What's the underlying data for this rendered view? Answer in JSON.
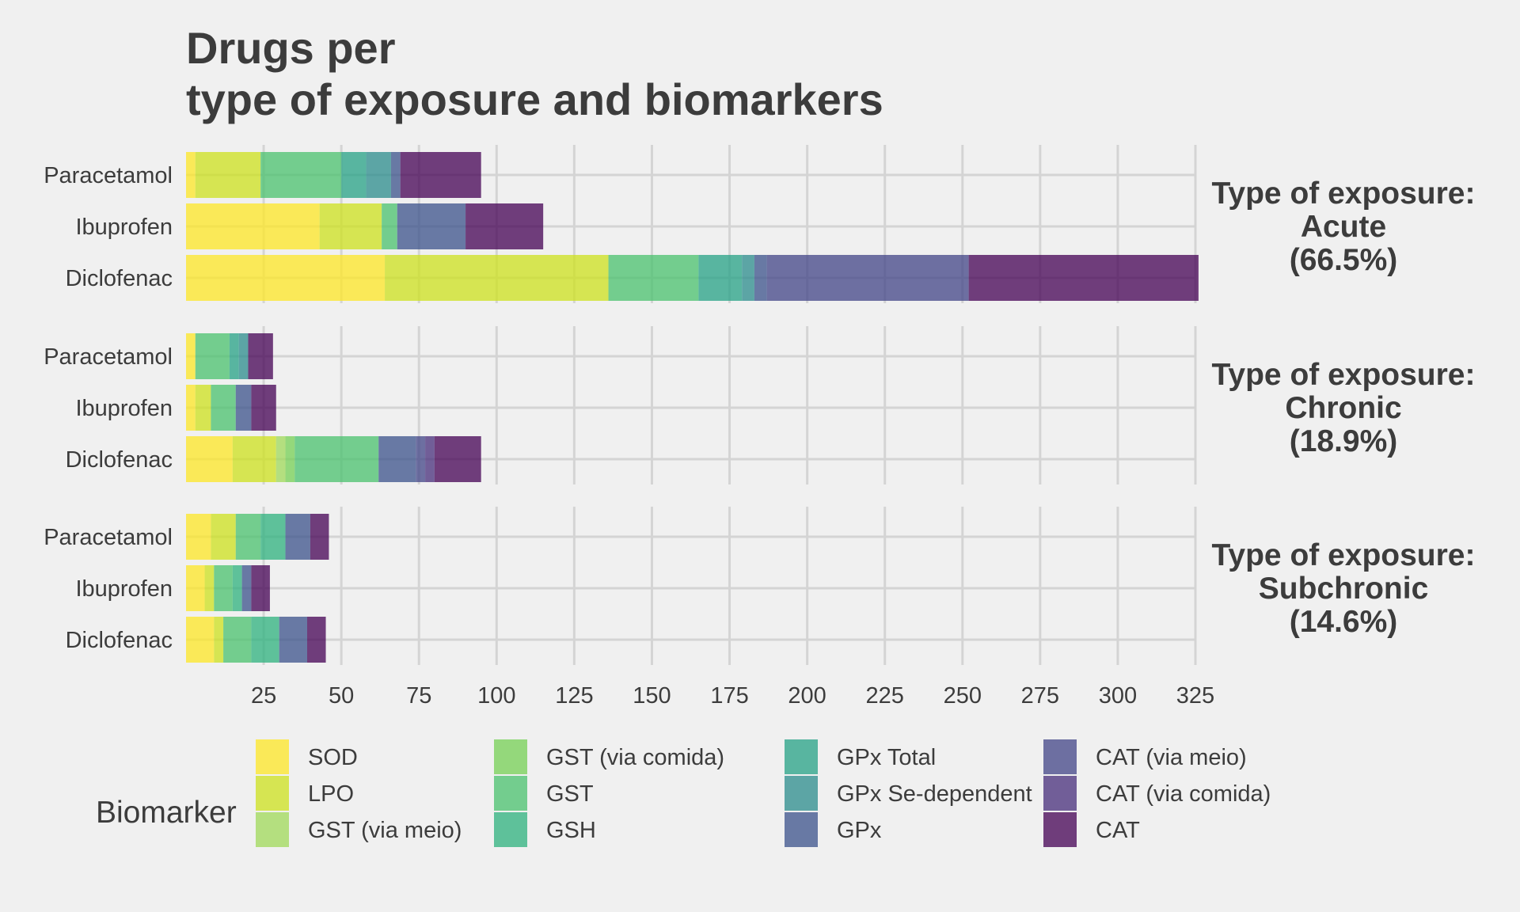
{
  "chart_data": {
    "type": "bar",
    "orientation": "horizontal",
    "stacked": true,
    "title": [
      "Drugs per",
      "type of exposure and biomarkers"
    ],
    "xlim": [
      0,
      325
    ],
    "x_ticks": [
      25,
      50,
      75,
      100,
      125,
      150,
      175,
      200,
      225,
      250,
      275,
      300,
      325
    ],
    "x_tick_labels": [
      "25",
      "50",
      "75",
      "100",
      "125",
      "150",
      "175",
      "200",
      "225",
      "250",
      "275",
      "300",
      "325"
    ],
    "grid": true,
    "legend_title": "Biomarker",
    "legend_position": "bottom",
    "biomarkers": [
      {
        "name": "SOD",
        "color": "#fde725"
      },
      {
        "name": "LPO",
        "color": "#cde11d"
      },
      {
        "name": "GST (via meio)",
        "color": "#a0da5a"
      },
      {
        "name": "GST (via comida)",
        "color": "#75d054"
      },
      {
        "name": "GST",
        "color": "#4ac16d"
      },
      {
        "name": "GSH",
        "color": "#2db27d"
      },
      {
        "name": "GPx Total",
        "color": "#26a185"
      },
      {
        "name": "GPx Se-dependent",
        "color": "#2b8c8c"
      },
      {
        "name": "GPx",
        "color": "#3b528b"
      },
      {
        "name": "CAT (via meio)",
        "color": "#414487"
      },
      {
        "name": "CAT (via comida)",
        "color": "#472d7b"
      },
      {
        "name": "CAT",
        "color": "#440154"
      }
    ],
    "facets": [
      {
        "label_lines": [
          "Type of exposure:",
          "Acute",
          "(66.5%)"
        ],
        "bars": [
          {
            "drug": "Paracetamol",
            "segments": [
              3,
              21,
              0,
              0,
              26,
              0,
              8,
              8,
              3,
              0,
              0,
              26
            ]
          },
          {
            "drug": "Ibuprofen",
            "segments": [
              43,
              20,
              0,
              0,
              5,
              0,
              0,
              0,
              22,
              0,
              0,
              25
            ]
          },
          {
            "drug": "Diclofenac",
            "segments": [
              64,
              72,
              0,
              0,
              29,
              0,
              14,
              4,
              4,
              65,
              0,
              74
            ]
          }
        ]
      },
      {
        "label_lines": [
          "Type of exposure:",
          "Chronic",
          "(18.9%)"
        ],
        "bars": [
          {
            "drug": "Paracetamol",
            "segments": [
              3,
              0,
              0,
              0,
              11,
              0,
              3,
              3,
              0,
              0,
              0,
              8
            ]
          },
          {
            "drug": "Ibuprofen",
            "segments": [
              3,
              5,
              0,
              0,
              8,
              0,
              0,
              0,
              5,
              0,
              0,
              8
            ]
          },
          {
            "drug": "Diclofenac",
            "segments": [
              15,
              14,
              3,
              3,
              27,
              0,
              0,
              0,
              12,
              3,
              3,
              15
            ]
          }
        ]
      },
      {
        "label_lines": [
          "Type of exposure:",
          "Subchronic",
          "(14.6%)"
        ],
        "bars": [
          {
            "drug": "Paracetamol",
            "segments": [
              8,
              8,
              0,
              0,
              8,
              8,
              0,
              0,
              8,
              0,
              0,
              6
            ]
          },
          {
            "drug": "Ibuprofen",
            "segments": [
              6,
              3,
              0,
              0,
              6,
              3,
              0,
              0,
              3,
              0,
              0,
              6
            ]
          },
          {
            "drug": "Diclofenac",
            "segments": [
              9,
              3,
              0,
              0,
              9,
              9,
              0,
              0,
              9,
              0,
              0,
              6
            ]
          }
        ]
      }
    ]
  }
}
